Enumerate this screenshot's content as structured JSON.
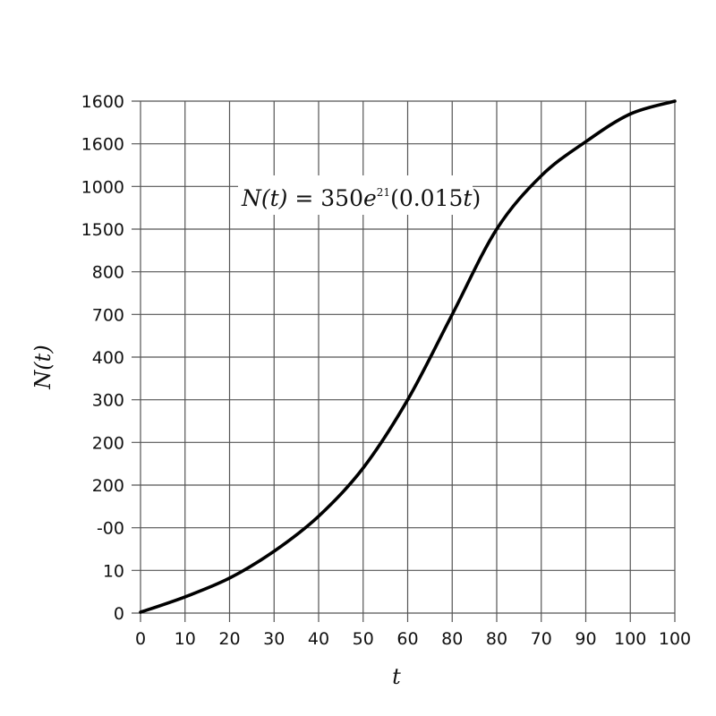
{
  "chart_data": {
    "type": "line",
    "title": "",
    "xlabel": "t",
    "ylabel": "N(t)",
    "annotation": {
      "text_parts": [
        "N(t)",
        " = 350",
        "e",
        "21",
        "(0.015",
        "t",
        ")"
      ],
      "full_text": "N(t) = 350e^21(0.015t)"
    },
    "x_tick_labels": [
      "0",
      "10",
      "20",
      "30",
      "40",
      "50",
      "60",
      "80",
      "80",
      "70",
      "90",
      "100",
      "100"
    ],
    "y_tick_labels": [
      "0",
      "10",
      "-00",
      "200",
      "200",
      "300",
      "400",
      "700",
      "800",
      "1500",
      "1000",
      "1600",
      "1600"
    ],
    "grid": true,
    "legend": null,
    "x_grid_index": [
      0,
      1,
      2,
      3,
      4,
      5,
      6,
      7,
      8,
      9,
      10,
      11,
      12
    ],
    "y_grid_index_of_curve": [
      0.02,
      0.38,
      0.82,
      1.45,
      2.27,
      3.4,
      5.0,
      7.0,
      9.0,
      10.25,
      11.05,
      11.7,
      12.0
    ],
    "series": [
      {
        "name": "N(t)",
        "color": "#000000",
        "x_labels_at_points": [
          "0",
          "10",
          "20",
          "30",
          "40",
          "50",
          "60",
          "80",
          "80",
          "70",
          "90",
          "100",
          "100"
        ],
        "y_grid_units": [
          0.02,
          0.38,
          0.82,
          1.45,
          2.27,
          3.4,
          5.0,
          7.0,
          9.0,
          10.25,
          11.05,
          11.7,
          12.0
        ]
      }
    ],
    "xlim_grid_units": [
      0,
      12
    ],
    "ylim_grid_units": [
      0,
      12
    ],
    "style": {
      "grid_color": "#555555",
      "curve_color": "#000000",
      "background": "#ffffff"
    }
  }
}
